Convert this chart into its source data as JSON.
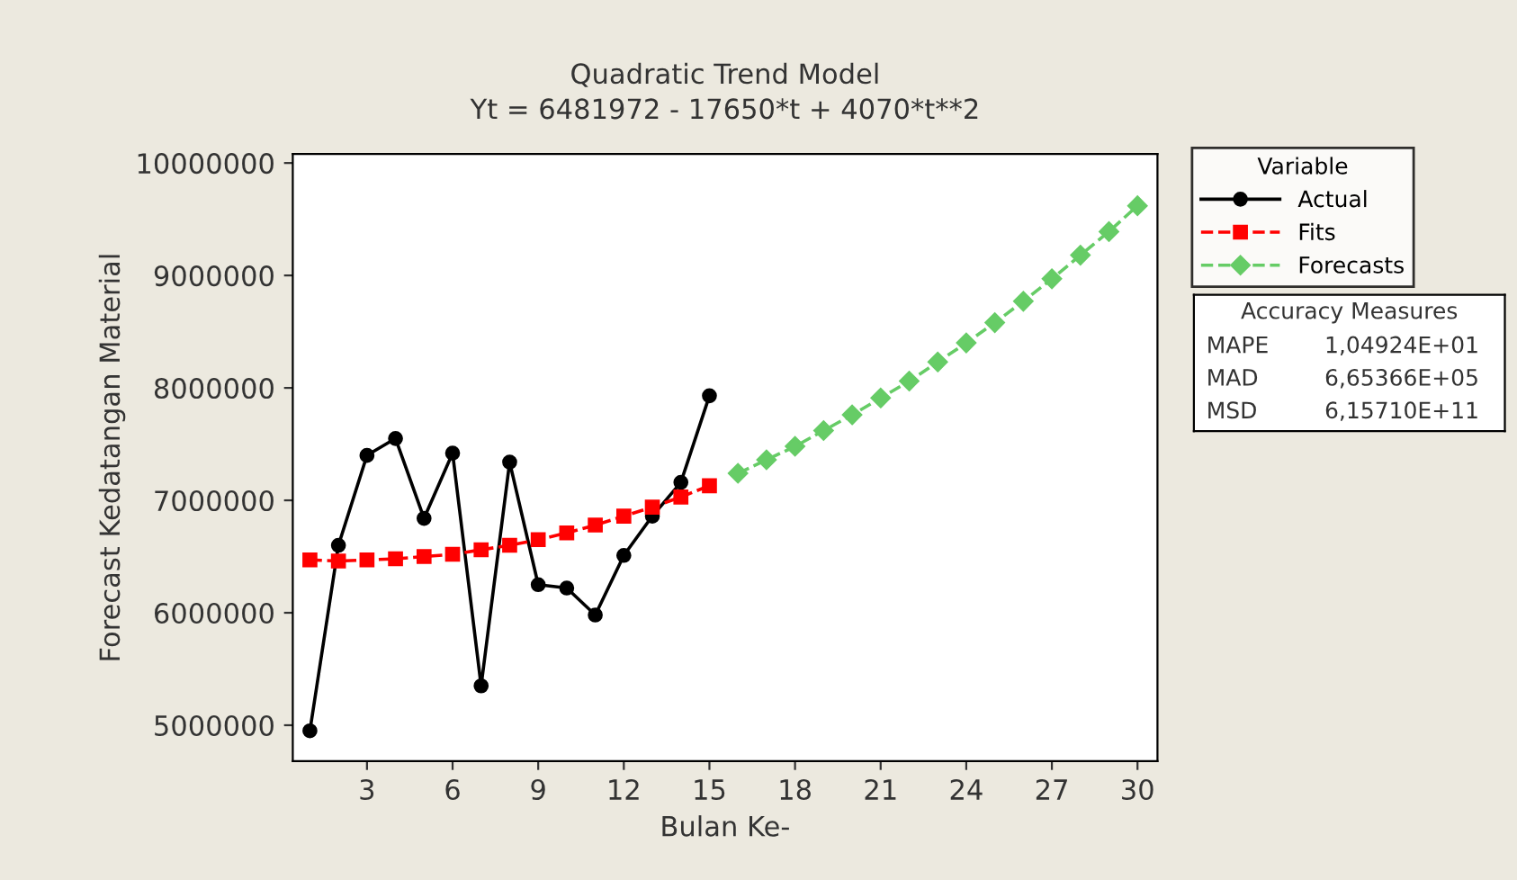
{
  "chart_data": {
    "type": "line",
    "title": "Quadratic Trend Model",
    "subtitle": "Yt = 6481972 - 17650*t + 4070*t**2",
    "xlabel": "Bulan Ke-",
    "ylabel": "Forecast Kedatangan Material",
    "legend_title": "Variable",
    "legend": "right",
    "grid": false,
    "xlim": [
      0.4,
      30.7
    ],
    "ylim": [
      4680000,
      10080000
    ],
    "xticks": [
      3,
      6,
      9,
      12,
      15,
      18,
      21,
      24,
      27,
      30
    ],
    "yticks": [
      5000000,
      6000000,
      7000000,
      8000000,
      9000000,
      10000000
    ],
    "series": [
      {
        "name": "Actual",
        "color": "#000000",
        "marker": "circle",
        "line_style": "solid",
        "x": [
          1,
          2,
          3,
          4,
          5,
          6,
          7,
          8,
          9,
          10,
          11,
          12,
          13,
          14,
          15
        ],
        "values": [
          4950000,
          6600000,
          7400000,
          7550000,
          6840000,
          7420000,
          5350000,
          7340000,
          6250000,
          6220000,
          5980000,
          6510000,
          6860000,
          7160000,
          7930000
        ]
      },
      {
        "name": "Fits",
        "color": "#ff0000",
        "marker": "square",
        "line_style": "dashed",
        "x": [
          1,
          2,
          3,
          4,
          5,
          6,
          7,
          8,
          9,
          10,
          11,
          12,
          13,
          14,
          15
        ],
        "values": [
          6470000,
          6460000,
          6470000,
          6480000,
          6500000,
          6520000,
          6560000,
          6600000,
          6650000,
          6710000,
          6780000,
          6860000,
          6940000,
          7030000,
          7130000
        ]
      },
      {
        "name": "Forecasts",
        "color": "#66cc66",
        "marker": "diamond",
        "line_style": "dashed",
        "x": [
          16,
          17,
          18,
          19,
          20,
          21,
          22,
          23,
          24,
          25,
          26,
          27,
          28,
          29,
          30
        ],
        "values": [
          7240000,
          7360000,
          7480000,
          7620000,
          7760000,
          7910000,
          8060000,
          8230000,
          8400000,
          8580000,
          8770000,
          8970000,
          9180000,
          9390000,
          9620000
        ]
      }
    ],
    "annotations": [
      "Accuracy Measures",
      "MAPE",
      "1,04924E+01",
      "MAD",
      "6,65366E+05",
      "MSD",
      "6,15710E+11"
    ]
  }
}
